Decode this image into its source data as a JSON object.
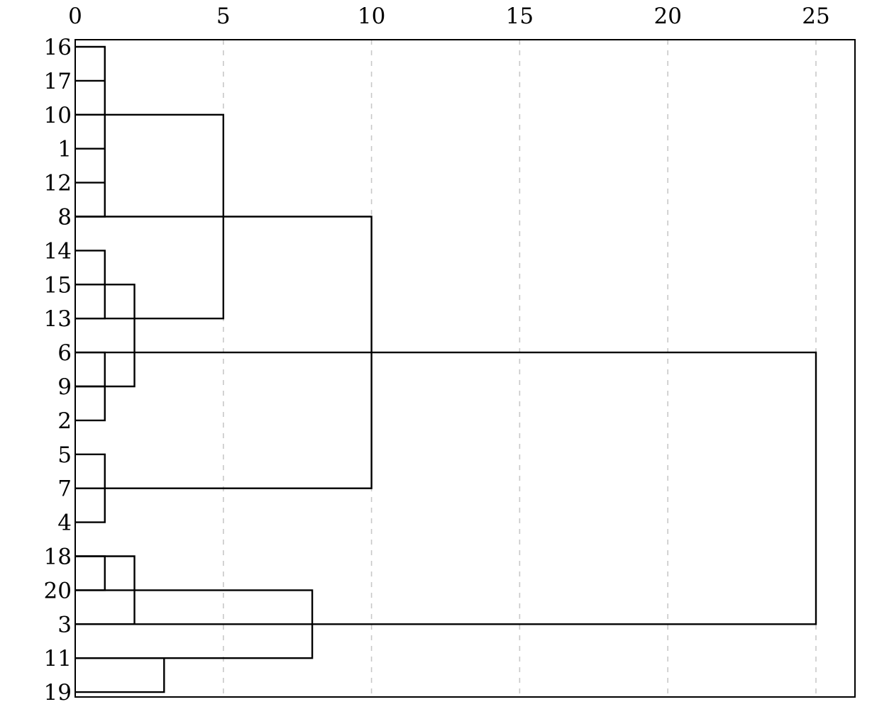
{
  "chart_data": {
    "type": "dendrogram",
    "title": "",
    "xlabel": "",
    "ylabel": "",
    "xlim": [
      0,
      26.2
    ],
    "x_ticks": [
      0,
      5,
      10,
      15,
      20,
      25
    ],
    "x_tick_labels": [
      "0",
      "5",
      "10",
      "15",
      "20",
      "25"
    ],
    "grid": true,
    "leaves": [
      "16",
      "17",
      "10",
      "1",
      "12",
      "8",
      "14",
      "15",
      "13",
      "6",
      "9",
      "2",
      "5",
      "7",
      "4",
      "18",
      "20",
      "3",
      "11",
      "19"
    ],
    "links": [
      {
        "rows": [
          0,
          5
        ],
        "height": 1,
        "stubs": [
          1,
          2,
          3,
          4
        ]
      },
      {
        "rows": [
          6,
          8
        ],
        "height": 1,
        "stubs": [
          7
        ]
      },
      {
        "rows": [
          9,
          11
        ],
        "height": 1,
        "stubs": [
          10
        ]
      },
      {
        "rows": [
          12,
          14
        ],
        "height": 1,
        "stubs": [
          13
        ]
      },
      {
        "rows": [
          15,
          16
        ],
        "height": 1,
        "stubs": []
      },
      {
        "rows": [
          18,
          19
        ],
        "height": 3,
        "stubs": []
      },
      {
        "rows": [
          7,
          10
        ],
        "height": 2,
        "stubs": []
      },
      {
        "rows": [
          15,
          17
        ],
        "height": 2,
        "stubs": []
      },
      {
        "rows": [
          2,
          8
        ],
        "height": 5,
        "stubs": []
      },
      {
        "rows": [
          16,
          18
        ],
        "height": 8,
        "stubs": []
      },
      {
        "rows": [
          5,
          13
        ],
        "height": 10,
        "stubs": []
      },
      {
        "rows": [
          9,
          17
        ],
        "height": 25,
        "stubs": []
      }
    ]
  }
}
